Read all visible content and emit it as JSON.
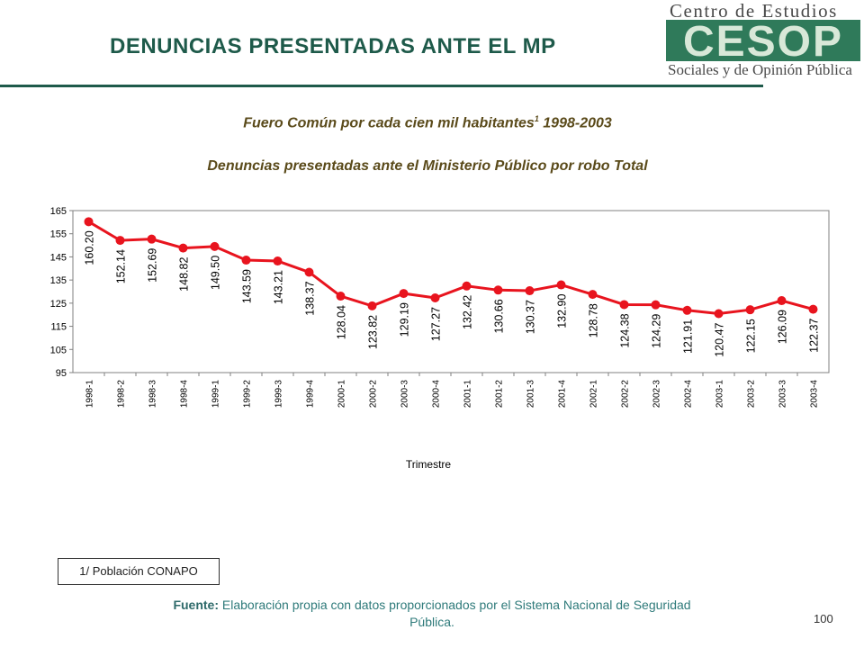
{
  "slide": {
    "title": "DENUNCIAS PRESENTADAS ANTE EL MP",
    "subtitle1": "Fuero Común por cada cien mil habitantes",
    "subtitle1_sup": "1",
    "subtitle1_years": " 1998-2003",
    "subtitle2": "Denuncias presentadas ante el Ministerio Público por robo Total",
    "footnote": "1/ Población CONAPO",
    "source_label": "Fuente:",
    "source_text": " Elaboración propia con datos proporcionados por el Sistema Nacional de Seguridad Pública.",
    "page_number": "100"
  },
  "logo": {
    "top_text": "Centro de Estudios",
    "mark_text": "CESOP",
    "bottom_text": "Sociales y de Opinión Pública"
  },
  "colors": {
    "title": "#1e5a4a",
    "series": "#e8141e",
    "logo_green": "#2f7a5a"
  },
  "chart_data": {
    "type": "line",
    "xlabel": "Trimestre",
    "ylabel": "",
    "ylim": [
      95,
      165
    ],
    "yticks": [
      95,
      105,
      115,
      125,
      135,
      145,
      155,
      165
    ],
    "grid": false,
    "categories": [
      "1998-1",
      "1998-2",
      "1998-3",
      "1998-4",
      "1999-1",
      "1999-2",
      "1999-3",
      "1999-4",
      "2000-1",
      "2000-2",
      "2000-3",
      "2000-4",
      "2001-1",
      "2001-2",
      "2001-3",
      "2001-4",
      "2002-1",
      "2002-2",
      "2002-3",
      "2002-4",
      "2003-1",
      "2003-2",
      "2003-3",
      "2003-4"
    ],
    "series": [
      {
        "values": [
          160.2,
          152.14,
          152.69,
          148.82,
          149.5,
          143.59,
          143.21,
          138.37,
          128.04,
          123.82,
          129.19,
          127.27,
          132.42,
          130.66,
          130.37,
          132.9,
          128.78,
          124.38,
          124.29,
          121.91,
          120.47,
          122.15,
          126.09,
          122.37
        ],
        "labels": [
          "160.20",
          "152.14",
          "152.69",
          "148.82",
          "149.50",
          "143.59",
          "143.21",
          "138.37",
          "128.04",
          "123.82",
          "129.19",
          "127.27",
          "132.42",
          "130.66",
          "130.37",
          "132.90",
          "128.78",
          "124.38",
          "124.29",
          "121.91",
          "120.47",
          "122.15",
          "126.09",
          "122.37"
        ]
      }
    ]
  }
}
